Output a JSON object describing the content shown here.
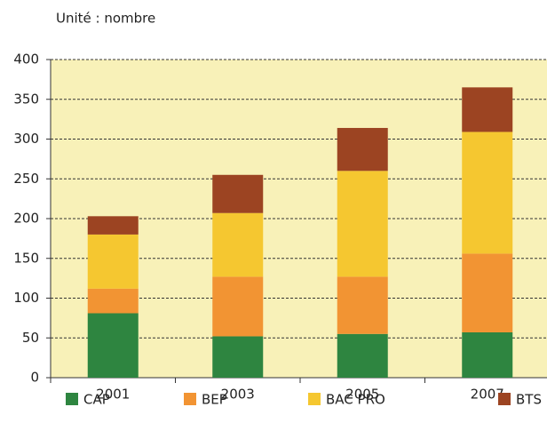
{
  "chart_data": {
    "type": "stacked_bar",
    "subtitle": "Unité : nombre",
    "categories": [
      "2001",
      "2003",
      "2005",
      "2007"
    ],
    "series": [
      {
        "name": "CAP",
        "color": "#2e8540",
        "values": [
          81,
          52,
          55,
          57
        ]
      },
      {
        "name": "BEP",
        "color": "#f29433",
        "values": [
          31,
          75,
          72,
          99
        ]
      },
      {
        "name": "BAC PRO",
        "color": "#f5c730",
        "values": [
          68,
          80,
          133,
          153
        ]
      },
      {
        "name": "BTS",
        "color": "#9c4422",
        "values": [
          23,
          48,
          54,
          56
        ]
      }
    ],
    "ylim": [
      0,
      400
    ],
    "yticks": [
      0,
      50,
      100,
      150,
      200,
      250,
      300,
      350,
      400
    ],
    "grid": true
  }
}
